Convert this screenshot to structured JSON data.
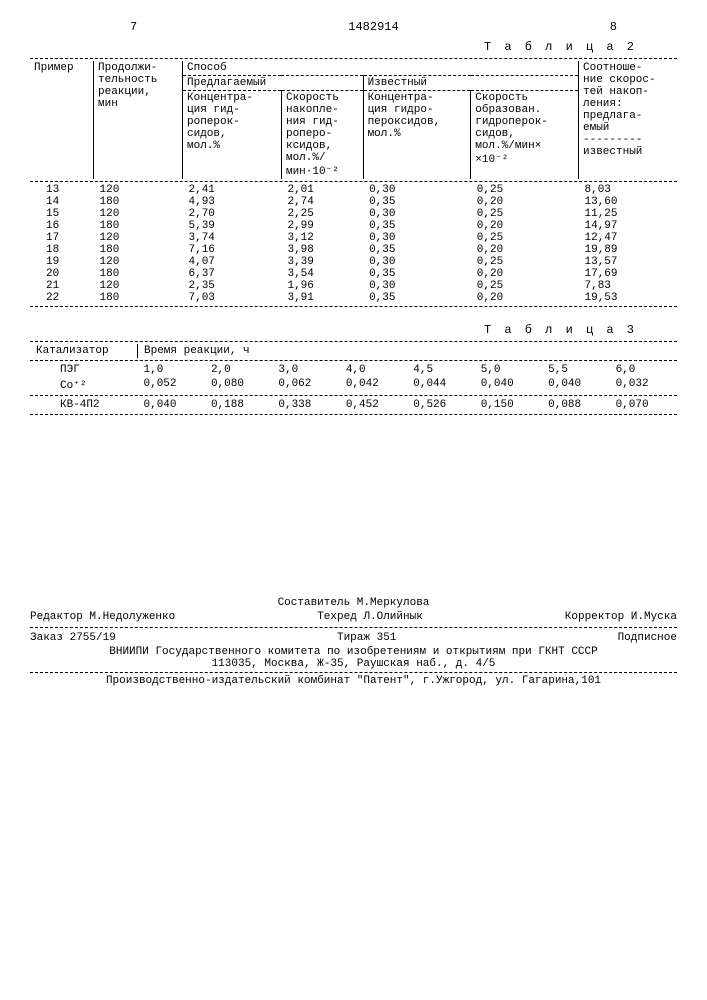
{
  "header": {
    "left_page": "7",
    "doc_number": "1482914",
    "right_page": "8"
  },
  "table2": {
    "caption": "Т а б л и ц а 2",
    "headers": {
      "col_example": "Пример",
      "col_duration": "Продолжи-\nтельность\nреакции,\nмин",
      "col_method": "Способ",
      "col_method_proposed": "Предлагаемый",
      "col_method_known": "Известный",
      "col_conc_prop": "Концентра-\nция гид-\nроперок-\nсидов,\nмол.%",
      "col_rate_prop": "Скорость\nнакопле-\nния гид-\nроперо-\nксидов,\nмол.%/\nмин·10⁻²",
      "col_conc_known": "Концентра-\nция гидро-\nпероксидов,\nмол.%",
      "col_rate_known": "Скорость\nобразован.\nгидроперок-\nсидов,\nмол.%/мин×\n×10⁻²",
      "col_ratio": "Соотноше-\nние скорос-\nтей накоп-\nления:\nпредлага-\nемый\n---------\nизвестный"
    },
    "rows": [
      [
        "13",
        "120",
        "2,41",
        "2,01",
        "0,30",
        "0,25",
        "8,03"
      ],
      [
        "14",
        "180",
        "4,93",
        "2,74",
        "0,35",
        "0,20",
        "13,60"
      ],
      [
        "15",
        "120",
        "2,70",
        "2,25",
        "0,30",
        "0,25",
        "11,25"
      ],
      [
        "16",
        "180",
        "5,39",
        "2,99",
        "0,35",
        "0,20",
        "14,97"
      ],
      [
        "17",
        "120",
        "3,74",
        "3,12",
        "0,30",
        "0,25",
        "12,47"
      ],
      [
        "18",
        "180",
        "7,16",
        "3,98",
        "0,35",
        "0,20",
        "19,89"
      ],
      [
        "19",
        "120",
        "4,07",
        "3,39",
        "0,30",
        "0,25",
        "13,57"
      ],
      [
        "20",
        "180",
        "6,37",
        "3,54",
        "0,35",
        "0,20",
        "17,69"
      ],
      [
        "21",
        "120",
        "2,35",
        "1,96",
        "0,30",
        "0,25",
        "7,83"
      ],
      [
        "22",
        "180",
        "7,03",
        "3,91",
        "0,35",
        "0,20",
        "19,53"
      ]
    ]
  },
  "table3": {
    "caption": "Т а б л и ц а 3",
    "headers": {
      "col_catalyst": "Катализатор",
      "col_time": "Время реакции, ч"
    },
    "row_labels": {
      "peg": "ПЭГ",
      "co": "Co⁺²",
      "kb": "КВ-4П2"
    },
    "times": [
      "1,0",
      "2,0",
      "3,0",
      "4,0",
      "4,5",
      "5,0",
      "5,5",
      "6,0"
    ],
    "co_vals": [
      "0,052",
      "0,080",
      "0,062",
      "0,042",
      "0,044",
      "0,040",
      "0,040",
      "0,032"
    ],
    "kb_vals": [
      "0,040",
      "0,188",
      "0,338",
      "0,452",
      "0,526",
      "0,150",
      "0,088",
      "0,070"
    ]
  },
  "footer": {
    "compiler": "Составитель М.Меркулова",
    "editor": "Редактор М.Недолуженко",
    "techred": "Техред Л.Олийнык",
    "corrector": "Корректор И.Муска",
    "order": "Заказ 2755/19",
    "tirazh": "Тираж 351",
    "subscr": "Подписное",
    "org1": "ВНИИПИ Государственного комитета по изобретениям и открытиям при ГКНТ СССР",
    "org1_addr": "113035, Москва, Ж-35, Раушская наб., д. 4/5",
    "org2": "Производственно-издательский комбинат \"Патент\", г.Ужгород, ул. Гагарина,101"
  }
}
